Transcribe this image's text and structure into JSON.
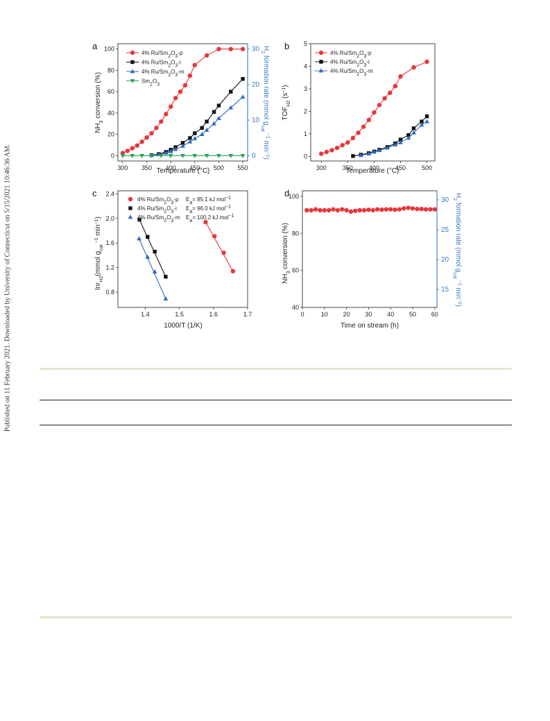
{
  "sidebar_text": "Published on 11 February 2021. Downloaded by University of Connecticut on 5/15/2021 10:46:36 AM.",
  "chart_data": [
    {
      "panel": "a",
      "type": "line",
      "xlabel": "Temperature (°C)",
      "ylabel": "NH3 conversion (%)",
      "y2label": "H2 formation rate (mmol gcat−1 min−1)",
      "xlim": [
        290,
        560
      ],
      "ylim": [
        -5,
        105
      ],
      "y2lim": [
        -1.5,
        31.5
      ],
      "xticks": [
        "300",
        "350",
        "400",
        "450",
        "500",
        "550"
      ],
      "yticks": [
        "0",
        "20",
        "40",
        "60",
        "80",
        "100"
      ],
      "y2ticks": [
        "0",
        "10",
        "20",
        "30"
      ],
      "legend_position": "top-left",
      "series": [
        {
          "name": "4% Ru/Sm2O3-p",
          "color": "#e8363a",
          "marker": "circle",
          "x": [
            300,
            310,
            320,
            330,
            340,
            350,
            360,
            370,
            380,
            390,
            400,
            410,
            420,
            430,
            440,
            450,
            475,
            500,
            525,
            550
          ],
          "y": [
            2.5,
            4.5,
            7,
            9.5,
            13,
            17,
            21,
            26,
            32,
            39,
            46,
            54,
            60,
            66,
            75,
            85,
            94,
            100,
            100,
            100
          ]
        },
        {
          "name": "4% Ru/Sm2O3-i",
          "color": "#111111",
          "marker": "square",
          "x": [
            360,
            375,
            390,
            400,
            410,
            425,
            440,
            450,
            465,
            475,
            490,
            500,
            525,
            550
          ],
          "y": [
            0.5,
            1.5,
            3.5,
            5.5,
            8,
            12,
            16.5,
            21,
            26,
            32,
            41,
            47,
            60,
            72
          ]
        },
        {
          "name": "4% Ru/Sm2O3-m",
          "color": "#2f6bc1",
          "marker": "triangle-up",
          "x": [
            360,
            375,
            390,
            400,
            410,
            425,
            440,
            450,
            465,
            475,
            490,
            500,
            525,
            550
          ],
          "y": [
            0.3,
            1,
            2.5,
            4,
            6,
            9,
            13,
            16,
            20,
            24,
            30,
            35,
            45,
            55
          ]
        },
        {
          "name": "Sm2O3",
          "color": "#2aa357",
          "marker": "triangle-down",
          "x": [
            300,
            320,
            340,
            360,
            380,
            400,
            425,
            450,
            475,
            500,
            525,
            550
          ],
          "y": [
            0,
            0,
            0,
            0,
            0,
            0,
            0,
            0,
            0,
            0,
            0,
            0
          ]
        }
      ]
    },
    {
      "panel": "b",
      "type": "line",
      "xlabel": "Temperature (°C)",
      "ylabel": "TOFH2 (s−1)",
      "xlim": [
        280,
        515
      ],
      "ylim": [
        -0.2,
        5
      ],
      "xticks": [
        "300",
        "350",
        "400",
        "450",
        "500"
      ],
      "yticks": [
        "0",
        "1",
        "2",
        "3",
        "4",
        "5"
      ],
      "legend_position": "top-left",
      "series": [
        {
          "name": "4% Ru/Sm2O3-p",
          "color": "#e8363a",
          "marker": "circle",
          "x": [
            300,
            310,
            320,
            330,
            340,
            350,
            360,
            370,
            380,
            390,
            400,
            410,
            420,
            430,
            440,
            450,
            475,
            500
          ],
          "y": [
            0.12,
            0.2,
            0.28,
            0.38,
            0.5,
            0.62,
            0.82,
            1.05,
            1.32,
            1.62,
            1.95,
            2.28,
            2.58,
            2.82,
            3.12,
            3.55,
            3.95,
            4.2
          ]
        },
        {
          "name": "4% Ru/Sm2O3-i",
          "color": "#111111",
          "marker": "square",
          "x": [
            360,
            375,
            390,
            400,
            410,
            425,
            440,
            450,
            465,
            475,
            490,
            500
          ],
          "y": [
            0.02,
            0.08,
            0.15,
            0.22,
            0.3,
            0.42,
            0.58,
            0.75,
            0.95,
            1.25,
            1.55,
            1.78
          ]
        },
        {
          "name": "4% Ru/Sm2O3-m",
          "color": "#2f6bc1",
          "marker": "triangle-up",
          "x": [
            375,
            390,
            400,
            410,
            425,
            440,
            450,
            465,
            475,
            490,
            500
          ],
          "y": [
            0.05,
            0.12,
            0.2,
            0.27,
            0.38,
            0.52,
            0.62,
            0.82,
            1.05,
            1.4,
            1.55
          ]
        }
      ]
    },
    {
      "panel": "c",
      "type": "scatter",
      "xlabel": "1000/T (1/K)",
      "ylabel": "lnrH2(mmol gcat−1 min−1)",
      "xlim": [
        1.32,
        1.7
      ],
      "ylim": [
        0.55,
        2.45
      ],
      "xticks": [
        "1.4",
        "1.5",
        "1.6",
        "1.7"
      ],
      "yticks": [
        "0.8",
        "1.2",
        "1.6",
        "2.0",
        "2.4"
      ],
      "legend_position": "top-left",
      "series": [
        {
          "name": "4% Ru/Sm2O3-p",
          "annotation": "Ea= 85.1 kJ mol−1",
          "color": "#e8363a",
          "marker": "circle",
          "x": [
            1.577,
            1.603,
            1.63,
            1.657
          ],
          "y": [
            1.94,
            1.71,
            1.44,
            1.14
          ]
        },
        {
          "name": "4% Ru/Sm2O3-i",
          "annotation": "Ea= 96.0 kJ mol−1",
          "color": "#111111",
          "marker": "square",
          "x": [
            1.383,
            1.407,
            1.428,
            1.46
          ],
          "y": [
            1.98,
            1.7,
            1.46,
            1.05
          ]
        },
        {
          "name": "4% Ru/Sm2O3-m",
          "annotation": "Ea= 100.2 kJ mol−1",
          "color": "#2f6bc1",
          "marker": "triangle-up",
          "x": [
            1.382,
            1.407,
            1.428,
            1.46
          ],
          "y": [
            1.67,
            1.37,
            1.13,
            0.69
          ]
        }
      ]
    },
    {
      "panel": "d",
      "type": "line",
      "xlabel": "Time on stream (h)",
      "ylabel": "NH3 conversion (%)",
      "y2label": "H2 formation rate (mmol gcat−1 min−1)",
      "xlim": [
        0,
        61
      ],
      "ylim": [
        40,
        103
      ],
      "y2lim": [
        12,
        31.5
      ],
      "xticks": [
        "0",
        "10",
        "20",
        "30",
        "40",
        "50",
        "60"
      ],
      "yticks": [
        "40",
        "60",
        "80",
        "100"
      ],
      "y2ticks": [
        "15",
        "20",
        "25",
        "30"
      ],
      "series": [
        {
          "name": "4% Ru/Sm2O3-p",
          "color": "#e8363a",
          "marker": "circle",
          "x": [
            2,
            4,
            6,
            8,
            10,
            12,
            14,
            16,
            18,
            20,
            22,
            24,
            26,
            28,
            30,
            32,
            34,
            36,
            38,
            40,
            42,
            44,
            46,
            48,
            50,
            52,
            54,
            56,
            58,
            60
          ],
          "y": [
            92.5,
            92.5,
            93,
            92.5,
            92.5,
            92.5,
            93,
            92.5,
            93,
            92.5,
            91.8,
            92.2,
            92.5,
            92.5,
            92.8,
            92.5,
            93,
            92.8,
            93,
            93,
            92.8,
            93,
            93.5,
            93.8,
            93.5,
            93.2,
            93.2,
            93,
            93,
            93
          ]
        }
      ]
    }
  ]
}
